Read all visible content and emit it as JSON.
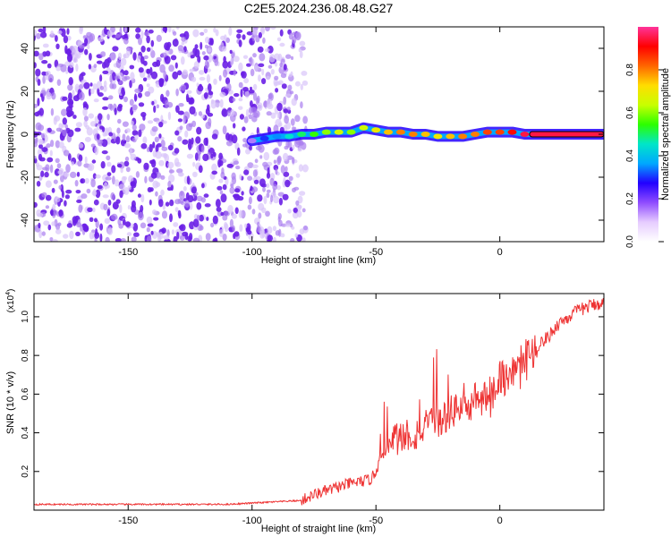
{
  "title": "C2E5.2024.236.08.48.G27",
  "chart_data": [
    {
      "type": "heatmap",
      "xlabel": "Height of straight line (km)",
      "ylabel": "Frequency (Hz)",
      "xlim": [
        -188,
        42
      ],
      "ylim": [
        -50,
        50
      ],
      "xticks": [
        -150,
        -100,
        -50,
        0
      ],
      "yticks": [
        -40,
        -20,
        0,
        20,
        40
      ],
      "colorbar": {
        "label": "Normalized spectral amplitude",
        "range": [
          0,
          1
        ],
        "ticks": [
          "0.0",
          "0.2",
          "0.4",
          "0.6",
          "0.8"
        ],
        "colormap": [
          "#ffffff",
          "#e6ccff",
          "#8f4cff",
          "#2200ff",
          "#00a8ff",
          "#00e6c8",
          "#2cff00",
          "#c8ff00",
          "#ffdd00",
          "#ff6600",
          "#ff0000",
          "#ff3399"
        ]
      },
      "noise_region_x": [
        -188,
        -78
      ],
      "signal_track": {
        "x": [
          -100,
          -95,
          -90,
          -85,
          -80,
          -75,
          -70,
          -65,
          -60,
          -55,
          -50,
          -45,
          -40,
          -35,
          -30,
          -25,
          -20,
          -15,
          -10,
          -5,
          0,
          5,
          10,
          15,
          20,
          25,
          30,
          35,
          42
        ],
        "frequency": [
          -3,
          -2,
          -1,
          -1,
          0,
          0,
          1,
          1,
          1,
          3,
          2,
          1,
          1,
          0,
          0,
          -1,
          -1,
          -1,
          0,
          1,
          1,
          1,
          0,
          0,
          0,
          0,
          0,
          0,
          0
        ],
        "amplitude": [
          0.15,
          0.3,
          0.35,
          0.45,
          0.5,
          0.55,
          0.6,
          0.65,
          0.6,
          0.65,
          0.7,
          0.75,
          0.8,
          0.8,
          0.75,
          0.7,
          0.75,
          0.8,
          0.8,
          0.85,
          0.85,
          0.9,
          0.95,
          0.95,
          0.95,
          0.95,
          0.95,
          0.95,
          0.95
        ]
      }
    },
    {
      "type": "line",
      "xlabel": "Height of straight line (km)",
      "ylabel": "SNR (10 * v/v)",
      "y_multiplier": "(x10^4)",
      "y_multiplier_base": "(x10",
      "y_multiplier_exp": "4",
      "xlim": [
        -188,
        42
      ],
      "ylim": [
        0,
        1.12
      ],
      "xticks": [
        -150,
        -100,
        -50,
        0
      ],
      "yticks": [
        "0.2",
        "0.4",
        "0.6",
        "0.8",
        "1.0"
      ],
      "series": [
        {
          "color": "#ee3333",
          "x": [
            -188,
            -170,
            -150,
            -130,
            -110,
            -95,
            -80,
            -75,
            -70,
            -65,
            -60,
            -55,
            -52,
            -50,
            -48,
            -45,
            -42,
            -40,
            -38,
            -35,
            -30,
            -25,
            -22,
            -20,
            -18,
            -15,
            -12,
            -10,
            -8,
            -5,
            -2,
            0,
            2,
            5,
            8,
            10,
            12,
            15,
            18,
            20,
            22,
            25,
            28,
            30,
            35,
            40,
            42
          ],
          "y": [
            0.03,
            0.03,
            0.03,
            0.03,
            0.03,
            0.04,
            0.05,
            0.08,
            0.1,
            0.12,
            0.14,
            0.15,
            0.16,
            0.2,
            0.28,
            0.32,
            0.38,
            0.35,
            0.4,
            0.38,
            0.43,
            0.45,
            0.48,
            0.5,
            0.52,
            0.55,
            0.5,
            0.58,
            0.55,
            0.6,
            0.62,
            0.7,
            0.68,
            0.72,
            0.75,
            0.8,
            0.8,
            0.85,
            0.88,
            0.9,
            0.94,
            0.98,
            1.0,
            1.02,
            1.05,
            1.07,
            1.07
          ]
        }
      ]
    }
  ]
}
